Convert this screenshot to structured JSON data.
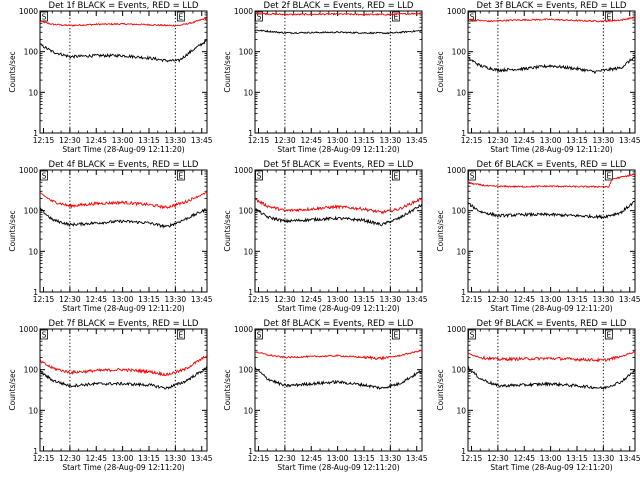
{
  "chart_data": [
    {
      "type": "line",
      "title": "Det 1f BLACK = Events, RED = LLD",
      "xlabel": "Start Time (28-Aug-09 12:11:20)",
      "ylabel": "Counts/sec",
      "yscale": "log",
      "ylim": [
        1,
        1000
      ],
      "xlim": [
        "12:13",
        "13:48"
      ],
      "x_ticks": [
        "12:15",
        "12:30",
        "12:45",
        "13:00",
        "13:15",
        "13:30",
        "13:45"
      ],
      "y_ticks": [
        "1",
        "10",
        "100",
        "1000"
      ],
      "markers": [
        {
          "label": "S",
          "time": "12:30"
        },
        {
          "label": "E",
          "time": "13:30"
        }
      ],
      "series": [
        {
          "color": "#ff0000",
          "x": [
            "12:13",
            "12:20",
            "12:30",
            "12:45",
            "13:00",
            "13:15",
            "13:25",
            "13:32",
            "13:40",
            "13:48"
          ],
          "values": [
            560,
            470,
            440,
            470,
            480,
            460,
            440,
            440,
            520,
            680
          ]
        },
        {
          "color": "#000000",
          "x": [
            "12:13",
            "12:20",
            "12:30",
            "12:45",
            "13:00",
            "13:15",
            "13:25",
            "13:32",
            "13:40",
            "13:48"
          ],
          "values": [
            150,
            100,
            75,
            80,
            80,
            70,
            60,
            60,
            110,
            190
          ]
        }
      ]
    },
    {
      "type": "line",
      "title": "Det 2f BLACK = Events, RED = LLD",
      "xlabel": "Start Time (28-Aug-09 12:11:20)",
      "ylabel": "Counts/sec",
      "yscale": "log",
      "ylim": [
        1,
        1000
      ],
      "xlim": [
        "12:13",
        "13:48"
      ],
      "x_ticks": [
        "12:15",
        "12:30",
        "12:45",
        "13:00",
        "13:15",
        "13:30",
        "13:45"
      ],
      "y_ticks": [
        "1",
        "10",
        "100",
        "1000"
      ],
      "markers": [
        {
          "label": "S",
          "time": "12:30"
        },
        {
          "label": "E",
          "time": "13:30"
        }
      ],
      "series": [
        {
          "color": "#ff0000",
          "x": [
            "12:13",
            "12:30",
            "12:45",
            "13:00",
            "13:15",
            "13:30",
            "13:48"
          ],
          "values": [
            880,
            820,
            830,
            840,
            820,
            820,
            880
          ]
        },
        {
          "color": "#000000",
          "x": [
            "12:13",
            "12:30",
            "12:45",
            "13:00",
            "13:15",
            "13:30",
            "13:48"
          ],
          "values": [
            340,
            290,
            295,
            300,
            290,
            285,
            330
          ]
        }
      ]
    },
    {
      "type": "line",
      "title": "Det 3f BLACK = Events, RED = LLD",
      "xlabel": "Start Time (28-Aug-09 12:11:20)",
      "ylabel": "Counts/sec",
      "yscale": "log",
      "ylim": [
        1,
        1000
      ],
      "xlim": [
        "12:13",
        "13:48"
      ],
      "x_ticks": [
        "12:15",
        "12:30",
        "12:45",
        "13:00",
        "13:15",
        "13:30",
        "13:45"
      ],
      "y_ticks": [
        "1",
        "10",
        "100",
        "1000"
      ],
      "markers": [
        {
          "label": "S",
          "time": "12:30"
        },
        {
          "label": "E",
          "time": "13:30"
        }
      ],
      "series": [
        {
          "color": "#ff0000",
          "x": [
            "12:13",
            "12:25",
            "12:40",
            "13:00",
            "13:15",
            "13:30",
            "13:40",
            "13:48"
          ],
          "values": [
            620,
            560,
            600,
            620,
            580,
            560,
            600,
            700
          ]
        },
        {
          "color": "#000000",
          "x": [
            "12:13",
            "12:20",
            "12:30",
            "12:45",
            "13:00",
            "13:15",
            "13:25",
            "13:40",
            "13:48"
          ],
          "values": [
            70,
            45,
            35,
            38,
            45,
            38,
            32,
            40,
            75
          ]
        }
      ]
    },
    {
      "type": "line",
      "title": "Det 4f BLACK = Events, RED = LLD",
      "xlabel": "Start Time (28-Aug-09 12:11:20)",
      "ylabel": "Counts/sec",
      "yscale": "log",
      "ylim": [
        1,
        1000
      ],
      "xlim": [
        "12:13",
        "13:48"
      ],
      "x_ticks": [
        "12:15",
        "12:30",
        "12:45",
        "13:00",
        "13:15",
        "13:30",
        "13:45"
      ],
      "y_ticks": [
        "1",
        "10",
        "100",
        "1000"
      ],
      "markers": [
        {
          "label": "S",
          "time": "12:30"
        },
        {
          "label": "E",
          "time": "13:30"
        }
      ],
      "series": [
        {
          "color": "#ff0000",
          "x": [
            "12:13",
            "12:20",
            "12:30",
            "12:45",
            "13:00",
            "13:15",
            "13:25",
            "13:35",
            "13:48"
          ],
          "values": [
            270,
            170,
            130,
            150,
            160,
            140,
            120,
            160,
            280
          ]
        },
        {
          "color": "#000000",
          "x": [
            "12:13",
            "12:20",
            "12:30",
            "12:45",
            "13:00",
            "13:15",
            "13:25",
            "13:35",
            "13:48"
          ],
          "values": [
            110,
            60,
            45,
            50,
            55,
            50,
            40,
            60,
            110
          ]
        }
      ]
    },
    {
      "type": "line",
      "title": "Det 5f BLACK = Events, RED = LLD",
      "xlabel": "Start Time (28-Aug-09 12:11:20)",
      "ylabel": "Counts/sec",
      "yscale": "log",
      "ylim": [
        1,
        1000
      ],
      "xlim": [
        "12:13",
        "13:48"
      ],
      "x_ticks": [
        "12:15",
        "12:30",
        "12:45",
        "13:00",
        "13:15",
        "13:30",
        "13:45"
      ],
      "y_ticks": [
        "1",
        "10",
        "100",
        "1000"
      ],
      "markers": [
        {
          "label": "S",
          "time": "12:30"
        },
        {
          "label": "E",
          "time": "13:30"
        }
      ],
      "series": [
        {
          "color": "#ff0000",
          "x": [
            "12:13",
            "12:20",
            "12:30",
            "12:45",
            "13:00",
            "13:15",
            "13:25",
            "13:35",
            "13:48"
          ],
          "values": [
            190,
            130,
            100,
            110,
            125,
            110,
            90,
            110,
            200
          ]
        },
        {
          "color": "#000000",
          "x": [
            "12:13",
            "12:20",
            "12:30",
            "12:45",
            "13:00",
            "13:15",
            "13:25",
            "13:35",
            "13:48"
          ],
          "values": [
            110,
            70,
            55,
            60,
            65,
            58,
            45,
            65,
            140
          ]
        }
      ]
    },
    {
      "type": "line",
      "title": "Det 6f BLACK = Events, RED = LLD",
      "xlabel": "Start Time (28-Aug-09 12:11:20)",
      "ylabel": "Counts/sec",
      "yscale": "log",
      "ylim": [
        1,
        1000
      ],
      "xlim": [
        "12:13",
        "13:48"
      ],
      "x_ticks": [
        "12:15",
        "12:30",
        "12:45",
        "13:00",
        "13:15",
        "13:30",
        "13:45"
      ],
      "y_ticks": [
        "1",
        "10",
        "100",
        "1000"
      ],
      "markers": [
        {
          "label": "S",
          "time": "12:30"
        },
        {
          "label": "E",
          "time": "13:30"
        }
      ],
      "series": [
        {
          "color": "#ff0000",
          "x": [
            "12:13",
            "12:25",
            "12:45",
            "13:00",
            "13:15",
            "13:30",
            "13:33",
            "13:35",
            "13:48"
          ],
          "values": [
            480,
            400,
            390,
            400,
            390,
            390,
            380,
            600,
            780
          ]
        },
        {
          "color": "#000000",
          "x": [
            "12:13",
            "12:20",
            "12:30",
            "12:45",
            "13:00",
            "13:15",
            "13:30",
            "13:40",
            "13:48"
          ],
          "values": [
            150,
            95,
            75,
            80,
            80,
            75,
            70,
            90,
            170
          ]
        }
      ]
    },
    {
      "type": "line",
      "title": "Det 7f BLACK = Events, RED = LLD",
      "xlabel": "Start Time (28-Aug-09 12:11:20)",
      "ylabel": "Counts/sec",
      "yscale": "log",
      "ylim": [
        1,
        1000
      ],
      "xlim": [
        "12:13",
        "13:48"
      ],
      "x_ticks": [
        "12:15",
        "12:30",
        "12:45",
        "13:00",
        "13:15",
        "13:30",
        "13:45"
      ],
      "y_ticks": [
        "1",
        "10",
        "100",
        "1000"
      ],
      "markers": [
        {
          "label": "S",
          "time": "12:30"
        },
        {
          "label": "E",
          "time": "13:30"
        }
      ],
      "series": [
        {
          "color": "#ff0000",
          "x": [
            "12:13",
            "12:20",
            "12:30",
            "12:45",
            "13:00",
            "13:15",
            "13:25",
            "13:35",
            "13:48"
          ],
          "values": [
            160,
            110,
            85,
            95,
            100,
            90,
            75,
            100,
            220
          ]
        },
        {
          "color": "#000000",
          "x": [
            "12:13",
            "12:20",
            "12:30",
            "12:45",
            "13:00",
            "13:15",
            "13:25",
            "13:35",
            "13:48"
          ],
          "values": [
            90,
            55,
            40,
            45,
            45,
            42,
            35,
            50,
            110
          ]
        }
      ]
    },
    {
      "type": "line",
      "title": "Det 8f BLACK = Events, RED = LLD",
      "xlabel": "Start Time (28-Aug-09 12:11:20)",
      "ylabel": "Counts/sec",
      "yscale": "log",
      "ylim": [
        1,
        1000
      ],
      "xlim": [
        "12:13",
        "13:48"
      ],
      "x_ticks": [
        "12:15",
        "12:30",
        "12:45",
        "13:00",
        "13:15",
        "13:30",
        "13:45"
      ],
      "y_ticks": [
        "1",
        "10",
        "100",
        "1000"
      ],
      "markers": [
        {
          "label": "S",
          "time": "12:30"
        },
        {
          "label": "E",
          "time": "13:30"
        }
      ],
      "series": [
        {
          "color": "#ff0000",
          "x": [
            "12:13",
            "12:20",
            "12:30",
            "12:45",
            "13:00",
            "13:15",
            "13:25",
            "13:35",
            "13:48"
          ],
          "values": [
            280,
            230,
            200,
            210,
            220,
            200,
            190,
            220,
            300
          ]
        },
        {
          "color": "#000000",
          "x": [
            "12:13",
            "12:20",
            "12:30",
            "12:45",
            "13:00",
            "13:15",
            "13:25",
            "13:35",
            "13:48"
          ],
          "values": [
            110,
            60,
            40,
            45,
            50,
            42,
            35,
            45,
            95
          ]
        }
      ]
    },
    {
      "type": "line",
      "title": "Det 9f BLACK = Events, RED = LLD",
      "xlabel": "Start Time (28-Aug-09 12:11:20)",
      "ylabel": "Counts/sec",
      "yscale": "log",
      "ylim": [
        1,
        1000
      ],
      "xlim": [
        "12:13",
        "13:48"
      ],
      "x_ticks": [
        "12:15",
        "12:30",
        "12:45",
        "13:00",
        "13:15",
        "13:30",
        "13:45"
      ],
      "y_ticks": [
        "1",
        "10",
        "100",
        "1000"
      ],
      "markers": [
        {
          "label": "S",
          "time": "12:30"
        },
        {
          "label": "E",
          "time": "13:30"
        }
      ],
      "series": [
        {
          "color": "#ff0000",
          "x": [
            "12:13",
            "12:20",
            "12:30",
            "12:45",
            "13:00",
            "13:15",
            "13:30",
            "13:40",
            "13:48"
          ],
          "values": [
            250,
            200,
            180,
            185,
            190,
            180,
            170,
            210,
            280
          ]
        },
        {
          "color": "#000000",
          "x": [
            "12:13",
            "12:20",
            "12:30",
            "12:45",
            "13:00",
            "13:15",
            "13:30",
            "13:40",
            "13:48"
          ],
          "values": [
            110,
            60,
            40,
            42,
            45,
            40,
            35,
            50,
            95
          ]
        }
      ]
    }
  ]
}
